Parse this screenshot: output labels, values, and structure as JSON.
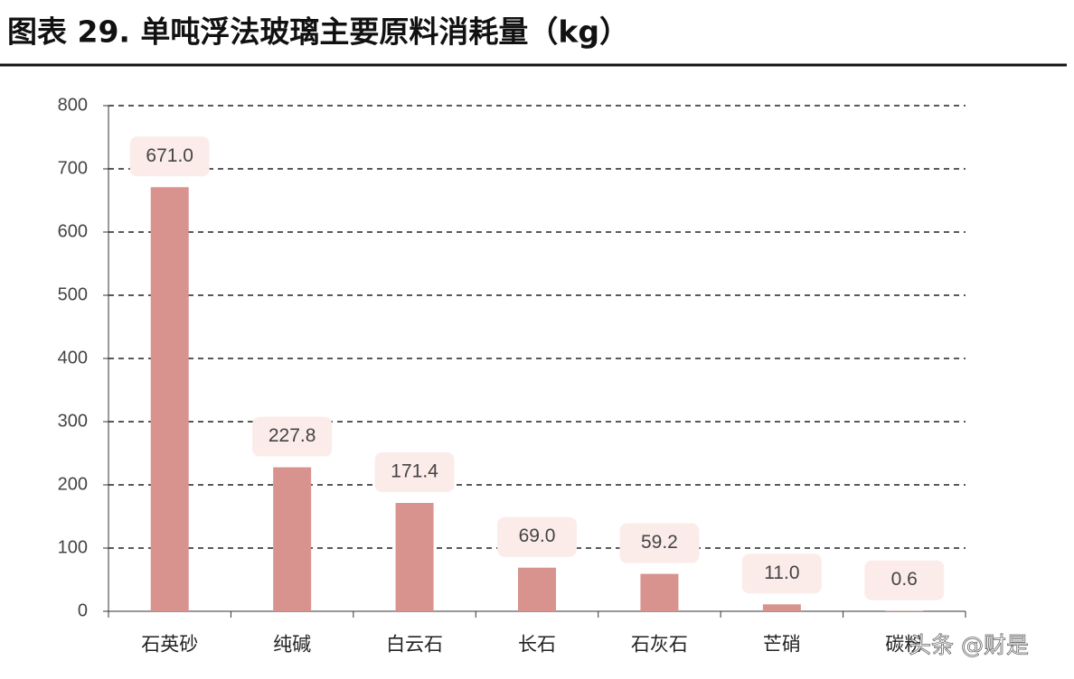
{
  "chart_data": {
    "type": "bar",
    "title": "图表 29. 单吨浮法玻璃主要原料消耗量（kg）",
    "categories": [
      "石英砂",
      "纯碱",
      "白云石",
      "长石",
      "石灰石",
      "芒硝",
      "碳粉"
    ],
    "values": [
      671.0,
      227.8,
      171.4,
      69.0,
      59.2,
      11.0,
      0.6
    ],
    "value_labels": [
      "671.0",
      "227.8",
      "171.4",
      "69.0",
      "59.2",
      "11.0",
      "0.6"
    ],
    "color": "#d9938f",
    "ylim": [
      0,
      800
    ],
    "yticks": [
      0,
      100,
      200,
      300,
      400,
      500,
      600,
      700,
      800
    ],
    "grid": true,
    "watermark": "头条 @财是"
  }
}
